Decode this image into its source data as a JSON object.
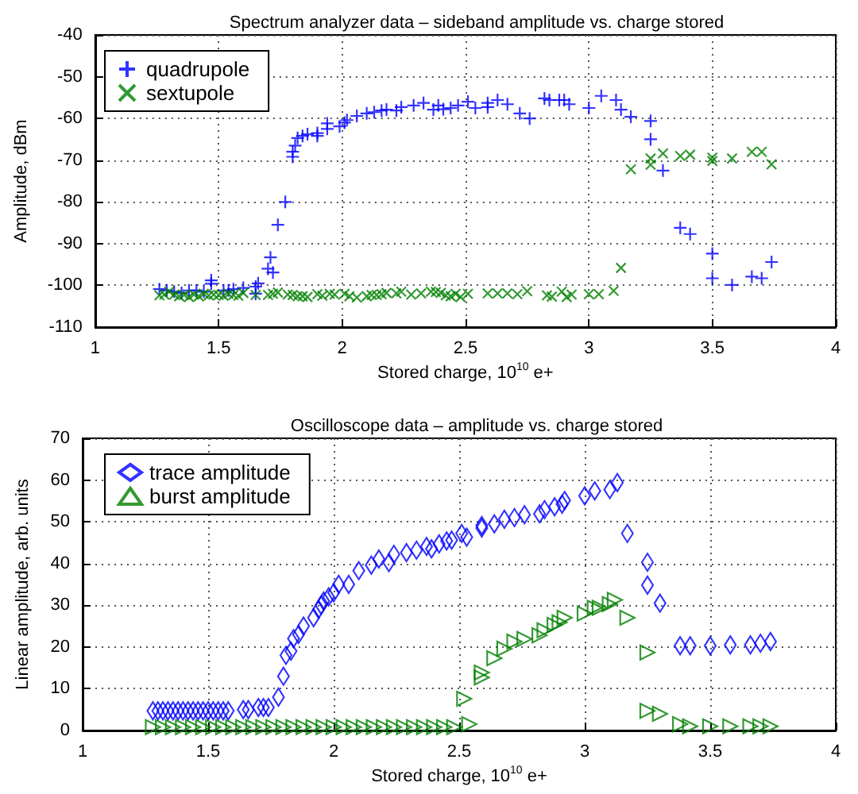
{
  "chart_data": [
    {
      "type": "scatter",
      "title": "Spectrum analyzer data – sideband amplitude vs. charge stored",
      "xlabel": "Stored charge, 10$^{10}$ e+",
      "ylabel": "Amplitude, dBm",
      "xlim": [
        1,
        4
      ],
      "xticks": [
        1,
        1.5,
        2,
        2.5,
        3,
        3.5,
        4
      ],
      "ylim": [
        -110,
        -40
      ],
      "yticks": [
        -110,
        -100,
        -90,
        -80,
        -70,
        -60,
        -50,
        -40
      ],
      "grid": true,
      "legend": "top left",
      "series": [
        {
          "name": "quadrupole",
          "color": "#0000ff",
          "marker": "plus",
          "x": [
            1.26,
            1.29,
            1.32,
            1.35,
            1.38,
            1.41,
            1.44,
            1.47,
            1.47,
            1.52,
            1.54,
            1.56,
            1.6,
            1.65,
            1.65,
            1.66,
            1.7,
            1.71,
            1.72,
            1.74,
            1.77,
            1.8,
            1.8,
            1.81,
            1.82,
            1.84,
            1.86,
            1.9,
            1.9,
            1.94,
            1.94,
            1.99,
            2.01,
            2.02,
            2.06,
            2.1,
            2.13,
            2.16,
            2.18,
            2.22,
            2.24,
            2.29,
            2.33,
            2.37,
            2.39,
            2.41,
            2.44,
            2.47,
            2.51,
            2.54,
            2.59,
            2.59,
            2.63,
            2.67,
            2.72,
            2.76,
            2.82,
            2.84,
            2.88,
            2.9,
            2.92,
            3.0,
            3.05,
            3.11,
            3.13,
            3.17,
            3.25,
            3.25,
            3.3,
            3.37,
            3.41,
            3.5,
            3.5,
            3.58,
            3.66,
            3.7,
            3.74
          ],
          "values": [
            -100.9,
            -101.2,
            -101.5,
            -101.8,
            -101.2,
            -101.2,
            -101.5,
            -99.6,
            -98.8,
            -101.2,
            -101.2,
            -100.9,
            -100.6,
            -102,
            -100.3,
            -99.5,
            -96,
            -93.3,
            -96.9,
            -85.5,
            -80,
            -69.2,
            -68,
            -66.5,
            -64.7,
            -64.2,
            -63.8,
            -63.5,
            -64.2,
            -62.5,
            -61.2,
            -61.9,
            -61,
            -60.4,
            -59.4,
            -58.8,
            -58.5,
            -58.1,
            -57.9,
            -58.1,
            -57.3,
            -56.9,
            -56.3,
            -57.9,
            -56.9,
            -57.8,
            -57.5,
            -56.9,
            -56,
            -57.5,
            -56.3,
            -57.3,
            -55.6,
            -56.6,
            -58.8,
            -60,
            -55.2,
            -55.6,
            -55.6,
            -55.6,
            -56.6,
            -57.5,
            -54.6,
            -55.6,
            -57.9,
            -59.6,
            -60.6,
            -65,
            -72.5,
            -86.2,
            -87.7,
            -92.4,
            -98.3,
            -99.9,
            -97.9,
            -98.3,
            -94.4
          ]
        },
        {
          "name": "sextupole",
          "color": "#008000",
          "marker": "cross",
          "x": [
            1.26,
            1.28,
            1.3,
            1.32,
            1.34,
            1.36,
            1.38,
            1.4,
            1.42,
            1.44,
            1.46,
            1.48,
            1.5,
            1.52,
            1.54,
            1.56,
            1.58,
            1.6,
            1.65,
            1.7,
            1.72,
            1.74,
            1.78,
            1.8,
            1.82,
            1.84,
            1.86,
            1.9,
            1.92,
            1.95,
            1.97,
            2.01,
            2.03,
            2.06,
            2.1,
            2.12,
            2.14,
            2.16,
            2.18,
            2.22,
            2.24,
            2.28,
            2.32,
            2.36,
            2.38,
            2.4,
            2.42,
            2.44,
            2.46,
            2.48,
            2.51,
            2.59,
            2.63,
            2.67,
            2.71,
            2.75,
            2.83,
            2.85,
            2.89,
            2.91,
            2.93,
            3.0,
            3.04,
            3.1,
            3.13,
            3.17,
            3.25,
            3.25,
            3.3,
            3.37,
            3.41,
            3.5,
            3.5,
            3.58,
            3.66,
            3.7,
            3.74
          ],
          "values": [
            -102.4,
            -102.2,
            -101.5,
            -102.2,
            -102.6,
            -102.3,
            -102.8,
            -102.2,
            -102.6,
            -102,
            -102.4,
            -102.2,
            -102.3,
            -102.5,
            -102,
            -102.3,
            -102.5,
            -101.8,
            -102.3,
            -102.3,
            -102,
            -101.7,
            -102.2,
            -102.3,
            -102.6,
            -102.6,
            -102.8,
            -102.1,
            -102.5,
            -102,
            -102.2,
            -102,
            -102.6,
            -102.9,
            -102.6,
            -102.3,
            -102.3,
            -102.1,
            -101.8,
            -101.9,
            -101.5,
            -102.2,
            -101.9,
            -101.5,
            -101.6,
            -101.8,
            -102.4,
            -102.6,
            -102,
            -102.8,
            -102,
            -101.9,
            -101.9,
            -101.9,
            -102.1,
            -101.4,
            -102.4,
            -102.7,
            -101.5,
            -102.8,
            -102.2,
            -102.1,
            -102.1,
            -101.3,
            -95.8,
            -72.2,
            -69.6,
            -71.1,
            -68.4,
            -69,
            -68.7,
            -69.4,
            -70.2,
            -69.6,
            -68,
            -68,
            -71
          ]
        }
      ]
    },
    {
      "type": "scatter",
      "title": "Oscilloscope data – amplitude vs. charge stored",
      "xlabel": "Stored charge, 10$^{10}$ e+",
      "ylabel": "Linear amplitude, arb. units",
      "xlim": [
        1,
        4
      ],
      "xticks": [
        1,
        1.5,
        2,
        2.5,
        3,
        3.5,
        4
      ],
      "ylim": [
        0,
        70
      ],
      "yticks": [
        0,
        10,
        20,
        30,
        40,
        50,
        60,
        70
      ],
      "grid": true,
      "legend": "top left",
      "series": [
        {
          "name": "trace amplitude",
          "color": "#0000ff",
          "marker": "diamond",
          "x": [
            1.28,
            1.3,
            1.32,
            1.34,
            1.36,
            1.38,
            1.4,
            1.42,
            1.44,
            1.46,
            1.48,
            1.5,
            1.52,
            1.54,
            1.56,
            1.58,
            1.64,
            1.66,
            1.7,
            1.72,
            1.74,
            1.78,
            1.8,
            1.81,
            1.83,
            1.84,
            1.86,
            1.88,
            1.92,
            1.94,
            1.95,
            1.96,
            1.98,
            2.0,
            2.02,
            2.06,
            2.1,
            2.15,
            2.18,
            2.22,
            2.24,
            2.29,
            2.33,
            2.37,
            2.39,
            2.42,
            2.45,
            2.47,
            2.51,
            2.53,
            2.59,
            2.59,
            2.64,
            2.68,
            2.72,
            2.76,
            2.82,
            2.84,
            2.88,
            2.91,
            2.92,
            3.0,
            3.04,
            3.1,
            3.13,
            3.17,
            3.25,
            3.25,
            3.3,
            3.38,
            3.42,
            3.5,
            3.58,
            3.66,
            3.7,
            3.74
          ],
          "values": [
            4.7,
            4.7,
            4.7,
            4.7,
            4.7,
            4.7,
            4.7,
            4.7,
            4.7,
            4.7,
            4.7,
            4.7,
            4.7,
            4.7,
            4.7,
            4.7,
            5,
            5,
            5.5,
            5.5,
            5.5,
            8,
            13,
            18,
            19,
            22,
            23,
            25,
            27,
            29,
            30,
            31,
            32,
            33,
            35,
            35,
            38.3,
            39.6,
            41.1,
            40.2,
            42.2,
            42.6,
            43.2,
            44.1,
            43.5,
            44.7,
            45.4,
            45.6,
            47.2,
            46.3,
            48.5,
            49.1,
            49.5,
            50.6,
            51,
            51.7,
            51.9,
            52.9,
            53.6,
            54.2,
            55.1,
            56.2,
            57.4,
            57.7,
            59.4,
            47.2,
            40.3,
            34.8,
            30.5,
            20.3,
            20.3,
            20.3,
            20.5,
            20.5,
            20.9,
            21.3
          ]
        },
        {
          "name": "burst amplitude",
          "color": "#008000",
          "marker": "triangle-right",
          "x": [
            1.28,
            1.32,
            1.36,
            1.4,
            1.44,
            1.48,
            1.52,
            1.56,
            1.6,
            1.64,
            1.68,
            1.72,
            1.76,
            1.8,
            1.84,
            1.88,
            1.92,
            1.96,
            2.0,
            2.04,
            2.08,
            2.12,
            2.16,
            2.2,
            2.24,
            2.28,
            2.32,
            2.36,
            2.4,
            2.44,
            2.48,
            2.52,
            2.54,
            2.59,
            2.59,
            2.64,
            2.68,
            2.72,
            2.76,
            2.82,
            2.84,
            2.88,
            2.9,
            2.92,
            3.0,
            3.04,
            3.06,
            3.1,
            3.12,
            3.17,
            3.25,
            3.25,
            3.3,
            3.38,
            3.42,
            3.5,
            3.58,
            3.66,
            3.7,
            3.74
          ],
          "values": [
            0.8,
            0.8,
            0.8,
            0.8,
            0.8,
            0.8,
            0.8,
            0.8,
            0.8,
            0.8,
            0.8,
            0.8,
            0.8,
            0.8,
            0.8,
            0.8,
            0.8,
            0.8,
            0.8,
            0.8,
            0.8,
            0.8,
            0.8,
            0.8,
            0.8,
            0.8,
            0.8,
            0.8,
            0.8,
            0.8,
            0.8,
            7.6,
            1.5,
            13.9,
            12.7,
            17.3,
            19.6,
            21.3,
            21.9,
            22.8,
            24,
            25.3,
            25.9,
            27,
            28,
            29.4,
            29.4,
            30.3,
            31.3,
            27,
            18.7,
            4.7,
            4,
            1.5,
            1,
            1,
            1,
            1,
            1,
            1
          ]
        }
      ]
    }
  ]
}
